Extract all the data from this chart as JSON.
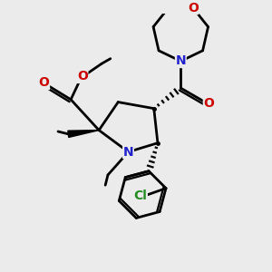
{
  "bg_color": "#ebebeb",
  "atom_colors": {
    "C": "#000000",
    "N": "#2222cc",
    "O": "#cc0000",
    "Cl": "#228B22"
  },
  "bond_color": "#000000",
  "bond_width": 2.0,
  "fig_width": 3.0,
  "fig_height": 3.0,
  "dpi": 100
}
